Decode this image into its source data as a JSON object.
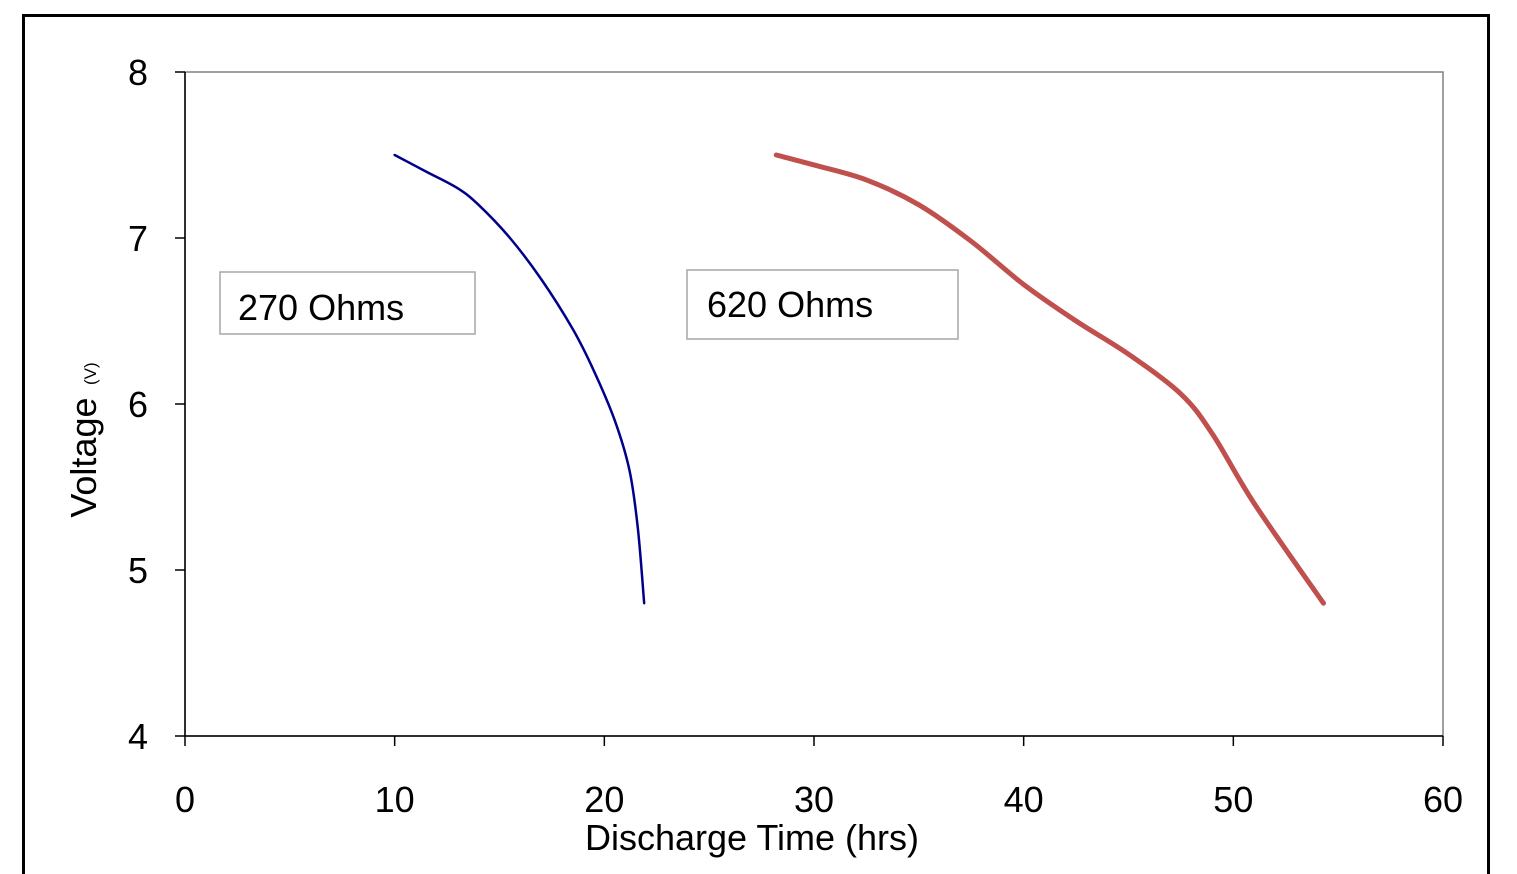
{
  "chart_data": {
    "type": "line",
    "xlabel": "Discharge Time (hrs)",
    "ylabel": "Voltage",
    "ylabel_unit": "(V)",
    "xlim": [
      0,
      60
    ],
    "ylim": [
      4,
      8
    ],
    "xticks": [
      "0",
      "10",
      "20",
      "30",
      "40",
      "50",
      "60"
    ],
    "yticks": [
      "4",
      "5",
      "6",
      "7",
      "8"
    ],
    "grid": false,
    "series": [
      {
        "name": "270 Ohms",
        "color": "#00008b",
        "x": [
          10,
          11.5,
          13,
          14,
          15.5,
          17,
          18.5,
          19.5,
          20.5,
          21.2,
          21.6,
          21.9
        ],
        "y": [
          7.5,
          7.4,
          7.3,
          7.2,
          7.0,
          6.75,
          6.45,
          6.2,
          5.9,
          5.6,
          5.25,
          4.8
        ]
      },
      {
        "name": "620 Ohms",
        "color": "#c0504d",
        "x": [
          28.2,
          30,
          32.5,
          35,
          37.5,
          40,
          42.5,
          45,
          47.5,
          49,
          51,
          54.3
        ],
        "y": [
          7.5,
          7.44,
          7.35,
          7.2,
          6.98,
          6.72,
          6.5,
          6.3,
          6.06,
          5.82,
          5.4,
          4.8
        ]
      }
    ],
    "annotations": [
      {
        "text": "270 Ohms"
      },
      {
        "text": "620 Ohms"
      }
    ]
  }
}
